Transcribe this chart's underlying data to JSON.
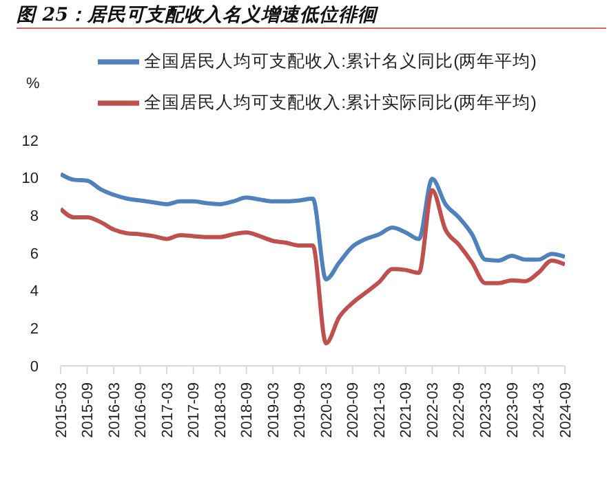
{
  "chart_data": {
    "type": "line",
    "title": "图 25：居民可支配收入名义增速低位徘徊",
    "ylabel": "%",
    "categories": [
      "2015-03",
      null,
      "2015-09",
      null,
      "2016-03",
      null,
      "2016-09",
      null,
      "2017-03",
      null,
      "2017-09",
      null,
      "2018-03",
      null,
      "2018-09",
      null,
      "2019-03",
      null,
      "2019-09",
      null,
      "2020-03",
      null,
      "2020-09",
      null,
      "2021-03",
      null,
      "2021-09",
      null,
      "2022-03",
      null,
      "2022-09",
      null,
      "2023-03",
      null,
      "2023-09",
      null,
      "2024-03",
      null,
      "2024-09"
    ],
    "series": [
      {
        "name": "全国居民人均可支配收入:累计名义同比(两年平均)",
        "color": "#4f81bd",
        "values": [
          10.2,
          9.9,
          9.85,
          9.4,
          9.1,
          8.9,
          8.8,
          8.7,
          8.6,
          8.75,
          8.75,
          8.65,
          8.6,
          8.75,
          8.95,
          8.85,
          8.75,
          8.75,
          8.8,
          8.9,
          4.6,
          5.5,
          6.35,
          6.75,
          7.0,
          7.35,
          7.1,
          6.75,
          9.95,
          8.6,
          7.9,
          7.0,
          5.65,
          5.6,
          5.85,
          5.65,
          5.65,
          5.95,
          5.8
        ]
      },
      {
        "name": "全国居民人均可支配收入:累计实际同比(两年平均)",
        "color": "#c0504d",
        "values": [
          8.35,
          7.9,
          7.9,
          7.65,
          7.25,
          7.05,
          7.0,
          6.9,
          6.75,
          6.95,
          6.9,
          6.85,
          6.85,
          7.0,
          7.1,
          6.9,
          6.65,
          6.55,
          6.4,
          6.4,
          1.2,
          2.6,
          3.35,
          3.9,
          4.45,
          5.15,
          5.1,
          4.95,
          9.35,
          7.25,
          6.45,
          5.5,
          4.4,
          4.4,
          4.55,
          4.5,
          4.95,
          5.6,
          5.4
        ]
      }
    ],
    "ylim": [
      0,
      12
    ],
    "yticks": [
      0,
      2,
      4,
      6,
      8,
      10,
      12
    ],
    "grid": false,
    "legend": "top",
    "marker": "none",
    "line_style": "solid"
  }
}
